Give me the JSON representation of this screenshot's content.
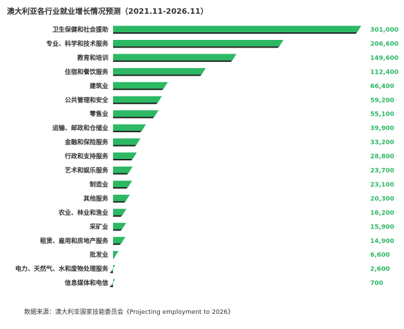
{
  "chart_data": {
    "type": "bar",
    "orientation": "horizontal",
    "title": "澳大利亚各行业就业增长情况预测（2021.11-2026.11）",
    "source": "数据来源：澳大利亚国家技能委员会《Projecting employment to 2026》",
    "bar_color": "#2db864",
    "bar_shadow_color": "#222222",
    "value_color": "#2db864",
    "categories": [
      "卫生保健和社会援助",
      "专业、科学和技术服务",
      "教育和培训",
      "住宿和餐饮服务",
      "建筑业",
      "公共管理和安全",
      "零售业",
      "运输、邮政和仓储业",
      "金融和保险服务",
      "行政和支持服务",
      "艺术和娱乐服务",
      "制造业",
      "其他服务",
      "农业、林业和渔业",
      "采矿业",
      "租赁、雇用和房地产服务",
      "批发业",
      "电力、天然气、水和废物处理服务",
      "信息媒体和电信"
    ],
    "values": [
      301000,
      206600,
      149600,
      112400,
      66400,
      59200,
      55100,
      39900,
      33200,
      28800,
      23700,
      23100,
      20300,
      16200,
      15900,
      14900,
      6600,
      2600,
      700
    ],
    "value_labels": [
      "301,000",
      "206,600",
      "149,600",
      "112,400",
      "66,400",
      "59,200",
      "55,100",
      "39,900",
      "33,200",
      "28,800",
      "23,700",
      "23,100",
      "20,300",
      "16,200",
      "15,900",
      "14,900",
      "6,600",
      "2,600",
      "700"
    ],
    "xlim": [
      0,
      301000
    ]
  }
}
